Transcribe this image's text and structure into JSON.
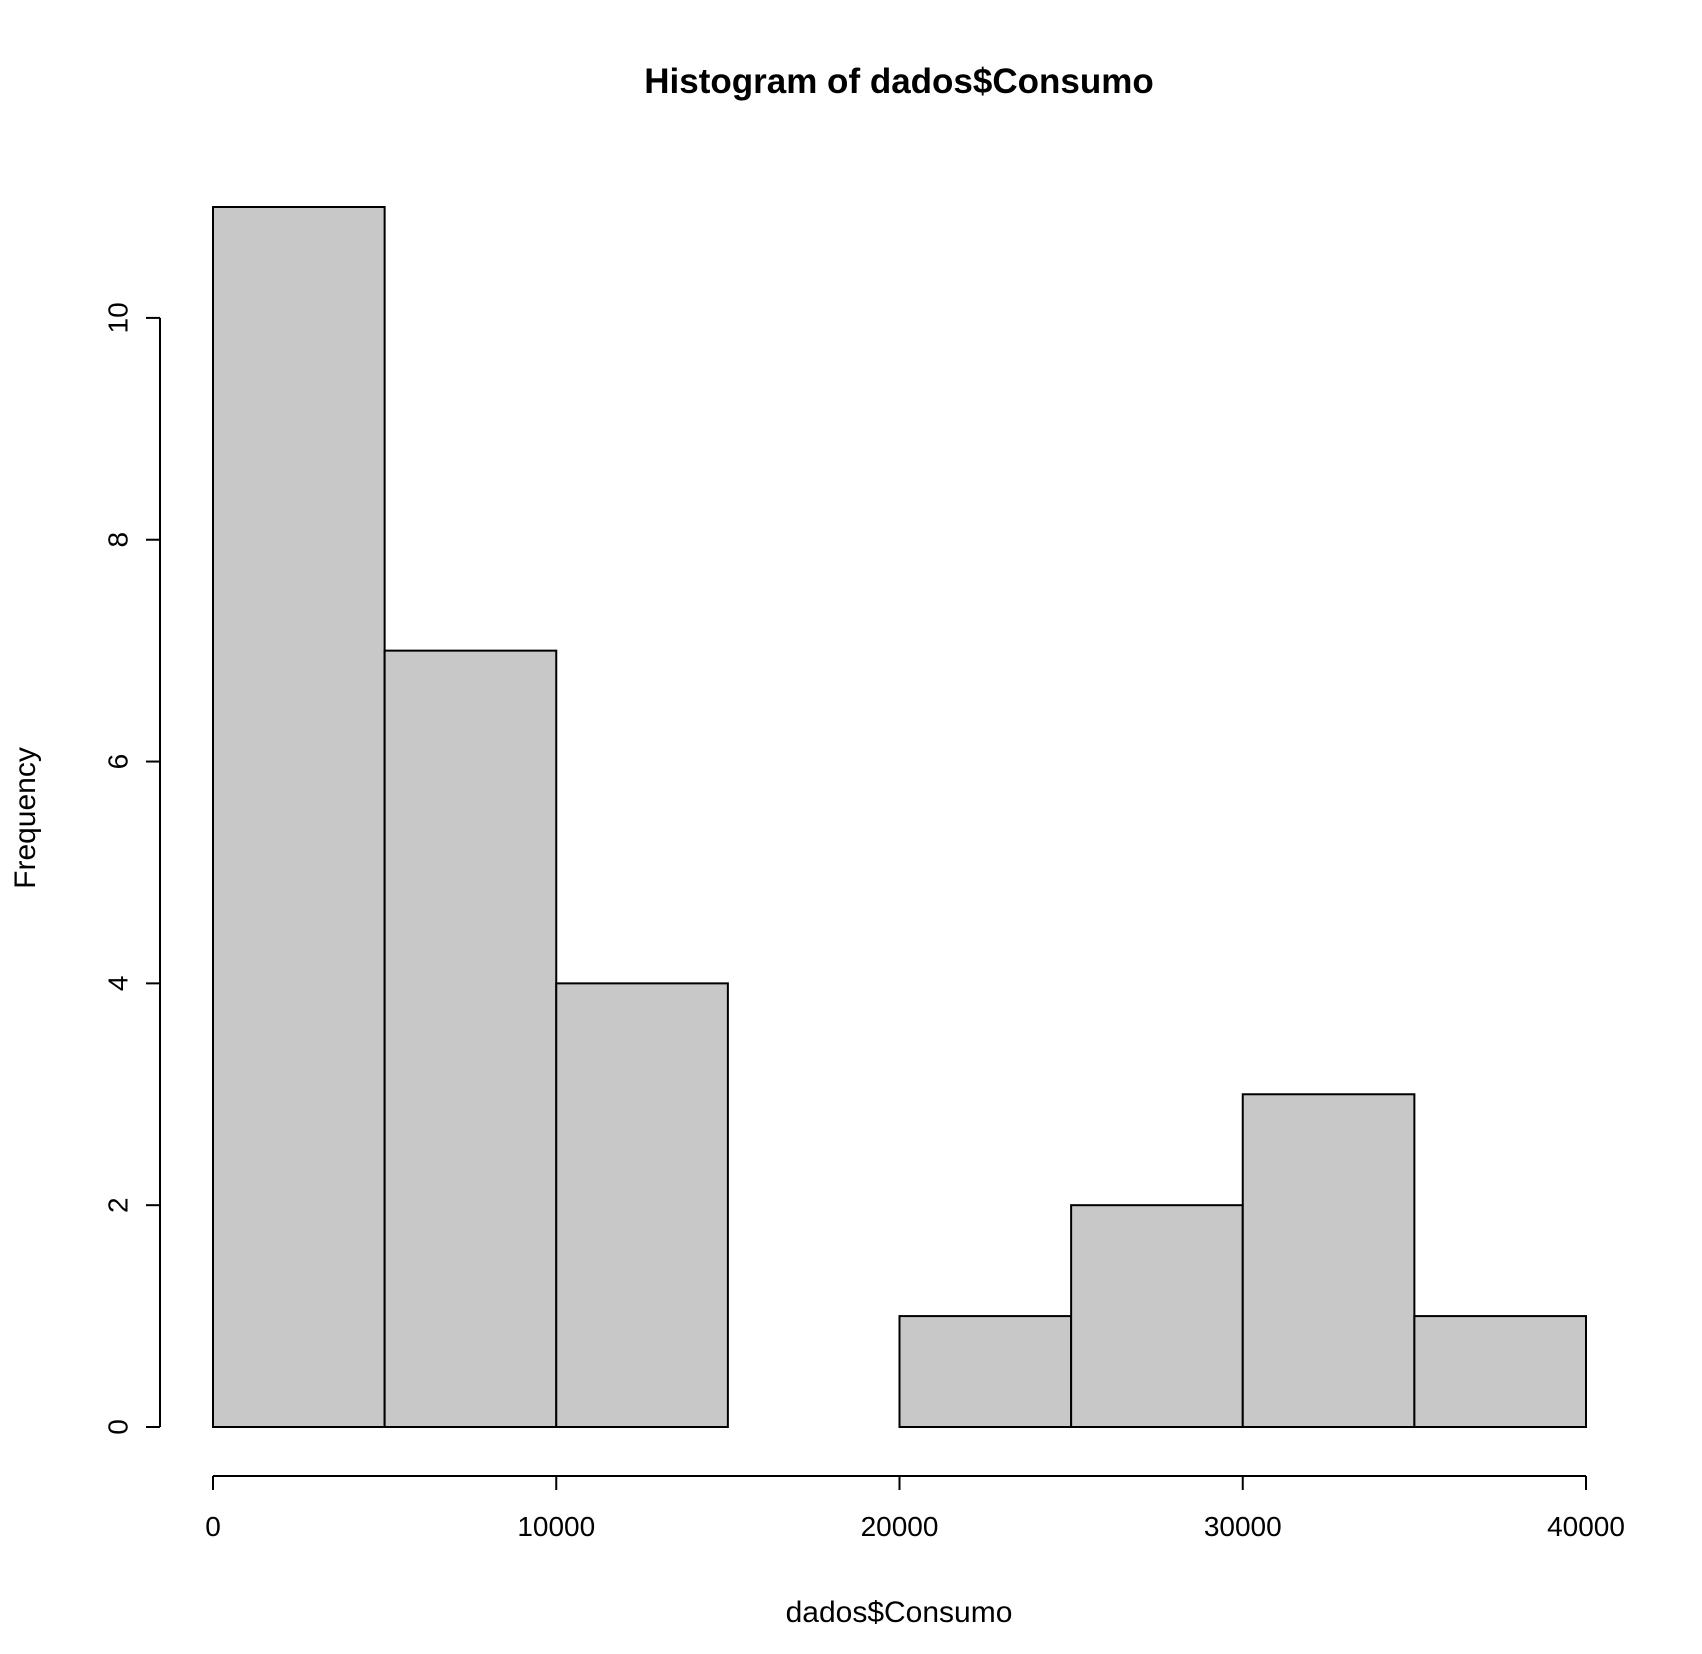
{
  "chart_data": {
    "type": "bar",
    "title": "Histogram of dados$Consumo",
    "xlabel": "dados$Consumo",
    "ylabel": "Frequency",
    "bins": [
      {
        "from": 0,
        "to": 5000,
        "count": 11
      },
      {
        "from": 5000,
        "to": 10000,
        "count": 7
      },
      {
        "from": 10000,
        "to": 15000,
        "count": 4
      },
      {
        "from": 15000,
        "to": 20000,
        "count": 0
      },
      {
        "from": 20000,
        "to": 25000,
        "count": 1
      },
      {
        "from": 25000,
        "to": 30000,
        "count": 2
      },
      {
        "from": 30000,
        "to": 35000,
        "count": 3
      },
      {
        "from": 35000,
        "to": 40000,
        "count": 1
      }
    ],
    "xlim": [
      0,
      40000
    ],
    "ylim": [
      0,
      11
    ],
    "x_ticks": [
      "0",
      "10000",
      "20000",
      "30000",
      "40000"
    ],
    "y_ticks": [
      "0",
      "2",
      "4",
      "6",
      "8",
      "10"
    ],
    "grid": false,
    "legend": "none",
    "colors": {
      "bar_fill": "#c8c8c8",
      "bar_stroke": "#000000"
    }
  }
}
